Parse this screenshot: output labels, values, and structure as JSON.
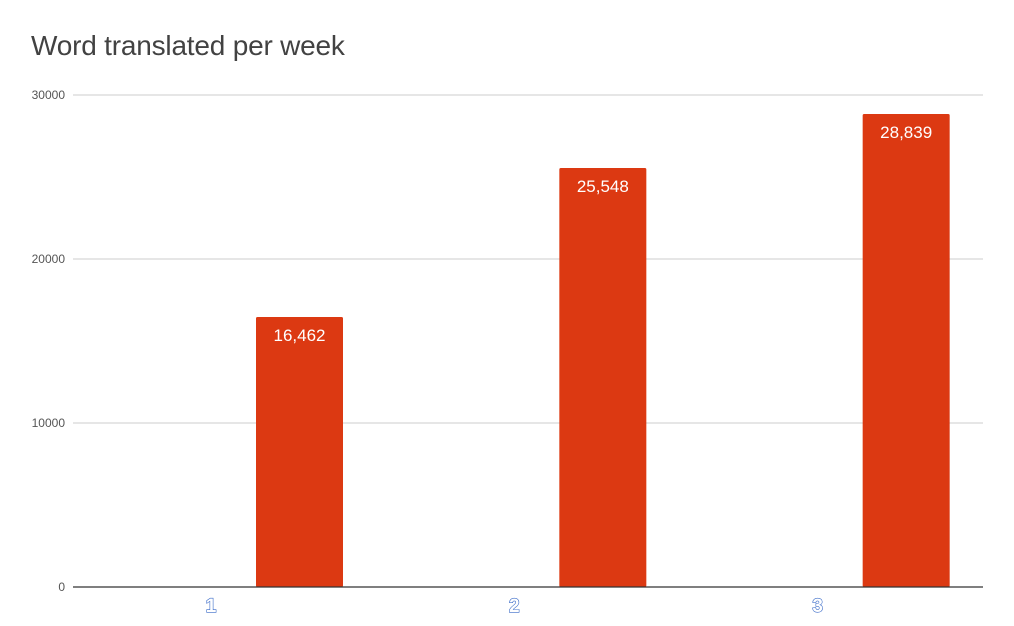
{
  "chart_data": {
    "type": "bar",
    "title": "Word translated per week",
    "xlabel": "",
    "ylabel": "",
    "categories": [
      "1",
      "2",
      "3"
    ],
    "values": [
      16462,
      25548,
      28839
    ],
    "data_labels": [
      "16,462",
      "25,548",
      "28,839"
    ],
    "yticks": [
      0,
      10000,
      20000,
      30000
    ],
    "ytick_labels": [
      "0",
      "10000",
      "20000",
      "30000"
    ],
    "ylim": [
      0,
      30000
    ],
    "grid": true,
    "legend": "none",
    "colors": {
      "bar": "#dc3912",
      "grid": "#cccccc",
      "axis": "#333333"
    }
  }
}
